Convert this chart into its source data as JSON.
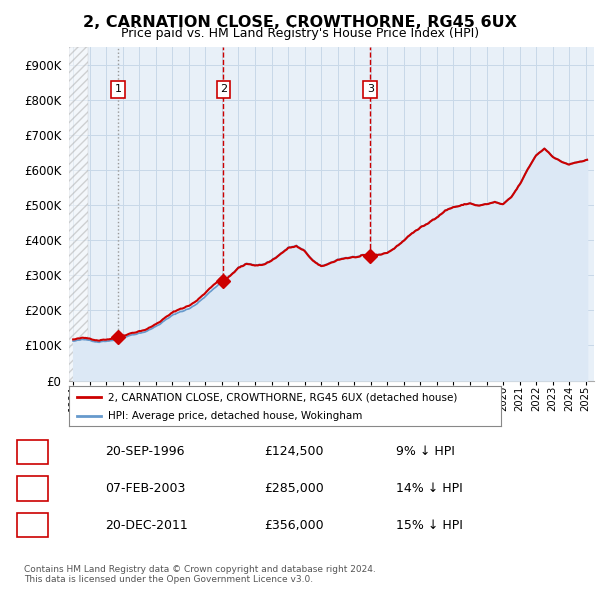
{
  "title": "2, CARNATION CLOSE, CROWTHORNE, RG45 6UX",
  "subtitle": "Price paid vs. HM Land Registry's House Price Index (HPI)",
  "ylim": [
    0,
    950000
  ],
  "yticks": [
    0,
    100000,
    200000,
    300000,
    400000,
    500000,
    600000,
    700000,
    800000,
    900000
  ],
  "ytick_labels": [
    "£0",
    "£100K",
    "£200K",
    "£300K",
    "£400K",
    "£500K",
    "£600K",
    "£700K",
    "£800K",
    "£900K"
  ],
  "xlim_start": 1993.75,
  "xlim_end": 2025.5,
  "hpi_line_color": "#6699cc",
  "hpi_fill_color": "#dce8f5",
  "price_color": "#cc0000",
  "grid_color": "#c8d8e8",
  "bg_plot_color": "#e8f0f8",
  "sale_dates": [
    1996.72,
    2003.09,
    2011.97
  ],
  "sale_prices": [
    124500,
    285000,
    356000
  ],
  "sale_labels": [
    "1",
    "2",
    "3"
  ],
  "sale_vline_color": "#cc0000",
  "sale1_vline_color": "#aaaaaa",
  "legend_line1": "2, CARNATION CLOSE, CROWTHORNE, RG45 6UX (detached house)",
  "legend_line2": "HPI: Average price, detached house, Wokingham",
  "table_rows": [
    [
      "1",
      "20-SEP-1996",
      "£124,500",
      "9% ↓ HPI"
    ],
    [
      "2",
      "07-FEB-2003",
      "£285,000",
      "14% ↓ HPI"
    ],
    [
      "3",
      "20-DEC-2011",
      "£356,000",
      "15% ↓ HPI"
    ]
  ],
  "footnote": "Contains HM Land Registry data © Crown copyright and database right 2024.\nThis data is licensed under the Open Government Licence v3.0."
}
